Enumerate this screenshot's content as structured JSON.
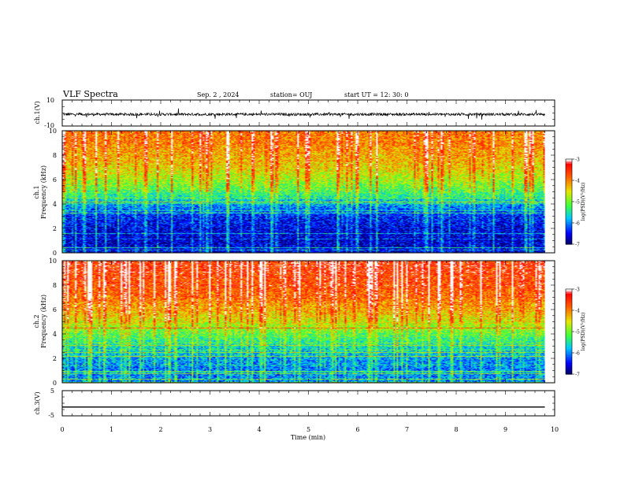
{
  "header": {
    "title": "VLF Spectra",
    "date": "Sep. 2 , 2024",
    "station": "station= OUJ",
    "start": "start UT =  12: 30: 0"
  },
  "colors": {
    "spectrum_scale": [
      "#00006e",
      "#0000ff",
      "#00c8ff",
      "#3cff3c",
      "#e6e600",
      "#ff5a00",
      "#ff0000",
      "#ffffff"
    ],
    "trace": "#000000"
  },
  "chart_data": [
    {
      "type": "line",
      "name": "ch1-waveform",
      "ylabel": "ch.1(V)",
      "ylim": [
        -10,
        10
      ],
      "yticks": [
        "10",
        "-10"
      ],
      "xlim": [
        0,
        10
      ],
      "x": [
        0,
        9.8
      ],
      "y": [
        -1,
        -1
      ],
      "description_values": {
        "approx_level_V": -1,
        "noise_amplitude_V": 2
      }
    },
    {
      "type": "heatmap",
      "name": "ch1-spectrogram",
      "ylabel": "ch.1\nFrequency (kHz)",
      "ylabel_line1": "ch.1",
      "ylabel_line2": "Frequency (kHz)",
      "ylim": [
        0,
        10
      ],
      "yticks": [
        "0",
        "2",
        "4",
        "6",
        "8",
        "10"
      ],
      "xlim": [
        0,
        10
      ],
      "data_xmax": 9.8,
      "profile_freq_kHz": [
        0,
        1,
        2,
        3,
        4,
        5,
        6,
        7,
        8,
        9,
        10
      ],
      "profile_logPSD": [
        -6.6,
        -6.7,
        -6.6,
        -6.4,
        -5.9,
        -5.2,
        -4.8,
        -4.4,
        -4.2,
        -4.0,
        -3.9
      ],
      "colorbar": {
        "label": "log(PSD)(V²/Hz)",
        "min": -7,
        "max": -3,
        "ticks": [
          "-3",
          "-4",
          "-5",
          "-6",
          "-7"
        ]
      }
    },
    {
      "type": "heatmap",
      "name": "ch2-spectrogram",
      "ylabel": "ch.2\nFrequency (kHz)",
      "ylabel_line1": "ch.2",
      "ylabel_line2": "Frequency (kHz)",
      "ylim": [
        0,
        10
      ],
      "yticks": [
        "0",
        "2",
        "4",
        "6",
        "8",
        "10"
      ],
      "xlim": [
        0,
        10
      ],
      "data_xmax": 9.8,
      "profile_freq_kHz": [
        0,
        1,
        2,
        3,
        4,
        5,
        6,
        7,
        8,
        9,
        10
      ],
      "profile_logPSD": [
        -6.0,
        -6.1,
        -5.9,
        -5.6,
        -5.1,
        -4.6,
        -4.2,
        -3.9,
        -3.7,
        -3.6,
        -3.5
      ],
      "colorbar": {
        "label": "log(PSD)(V²/Hz)",
        "min": -7,
        "max": -3,
        "ticks": [
          "-3",
          "-4",
          "-5",
          "-6",
          "-7"
        ]
      }
    },
    {
      "type": "line",
      "name": "ch3-waveform",
      "ylabel": "ch.3(V)",
      "ylim": [
        -5,
        5
      ],
      "yticks": [
        "5",
        "-5"
      ],
      "xlim": [
        0,
        10
      ],
      "x": [
        0,
        9.8
      ],
      "y": [
        -1.5,
        -1.5
      ]
    }
  ],
  "xaxis": {
    "label": "Time  (min)",
    "ticks": [
      "0",
      "1",
      "2",
      "3",
      "4",
      "5",
      "6",
      "7",
      "8",
      "9",
      "10"
    ]
  }
}
